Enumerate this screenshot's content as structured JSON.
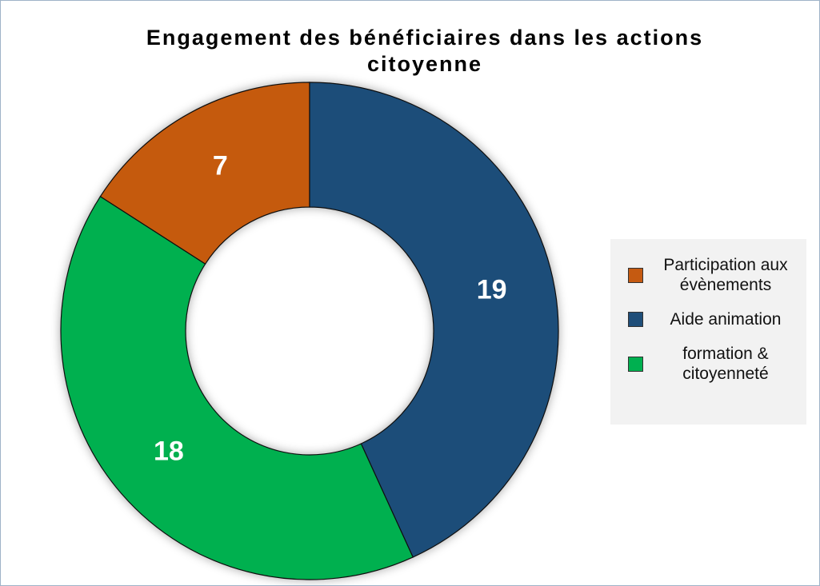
{
  "chart_data": {
    "type": "donut",
    "title": "Engagement des bénéficiaires dans les actions citoyenne",
    "categories": [
      "Participation aux évènements",
      "Aide animation",
      "formation & citoyenneté"
    ],
    "values": [
      7,
      19,
      18
    ],
    "colors": [
      "#c55a11",
      "#1f4e79",
      "#00b050"
    ],
    "legend": "right"
  }
}
